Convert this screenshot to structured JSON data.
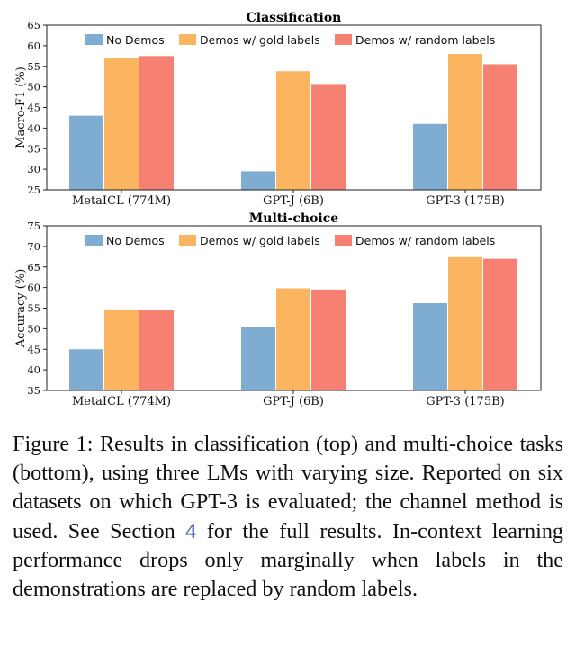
{
  "chart_data": [
    {
      "type": "bar",
      "title": "Classification",
      "ylabel": "Macro-F1 (%)",
      "xlabel": "",
      "ylim": [
        25,
        65
      ],
      "yticks": [
        25,
        30,
        35,
        40,
        45,
        50,
        55,
        60,
        65
      ],
      "categories": [
        "MetaICL (774M)",
        "GPT-J (6B)",
        "GPT-3 (175B)"
      ],
      "legend_position": "top",
      "series": [
        {
          "name": "No Demos",
          "color": "#7fadd2",
          "values": [
            43.0,
            29.5,
            41.0
          ]
        },
        {
          "name": "Demos w/ gold labels",
          "color": "#fbb560",
          "values": [
            57.0,
            53.8,
            58.0
          ]
        },
        {
          "name": "Demos w/ random labels",
          "color": "#f68072",
          "values": [
            57.5,
            50.7,
            55.5
          ]
        }
      ]
    },
    {
      "type": "bar",
      "title": "Multi-choice",
      "ylabel": "Accuracy (%)",
      "xlabel": "",
      "ylim": [
        35,
        75
      ],
      "yticks": [
        35,
        40,
        45,
        50,
        55,
        60,
        65,
        70,
        75
      ],
      "categories": [
        "MetaICL (774M)",
        "GPT-J (6B)",
        "GPT-3 (175B)"
      ],
      "legend_position": "top",
      "series": [
        {
          "name": "No Demos",
          "color": "#7fadd2",
          "values": [
            45.0,
            50.5,
            56.2
          ]
        },
        {
          "name": "Demos w/ gold labels",
          "color": "#fbb560",
          "values": [
            54.7,
            59.8,
            67.4
          ]
        },
        {
          "name": "Demos w/ random labels",
          "color": "#f68072",
          "values": [
            54.5,
            59.5,
            67.0
          ]
        }
      ]
    }
  ],
  "caption": {
    "label": "Figure 1:",
    "text_before_ref": "Results in classification (top) and multi-choice tasks (bottom), using three LMs with varying size. Reported on six datasets on which GPT-3 is evaluated; the channel method is used. See Section",
    "section_ref": "4",
    "text_after_ref": "for the full results. In-context learning performance drops only marginally when labels in the demonstrations are replaced by random labels."
  }
}
